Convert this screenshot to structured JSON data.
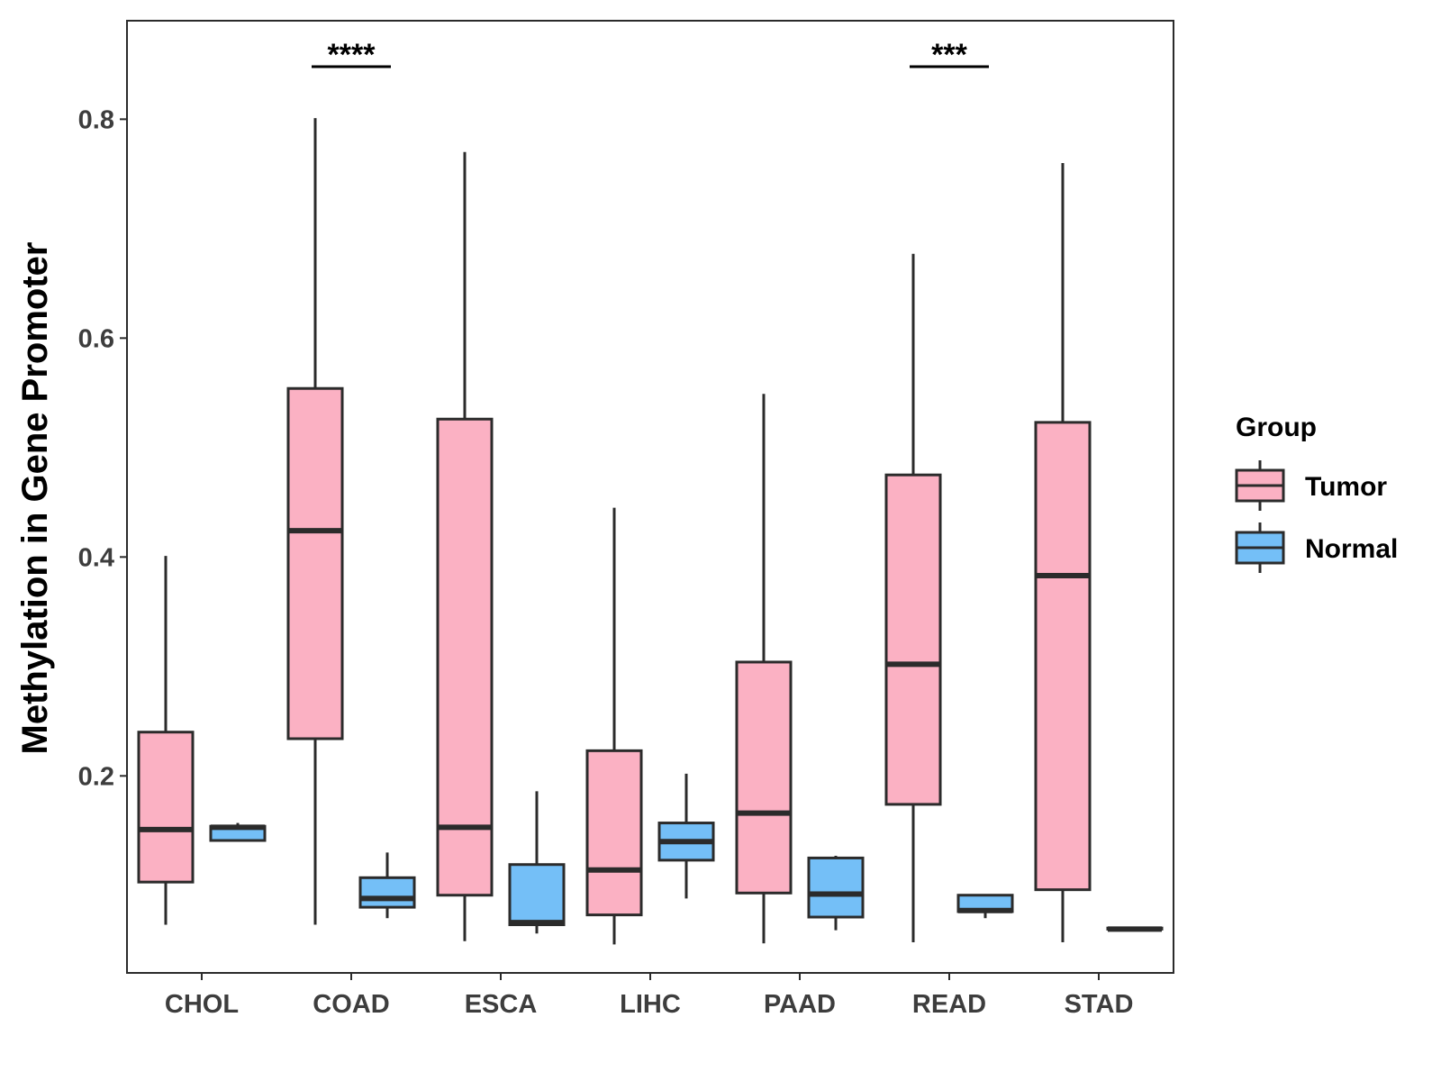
{
  "chart_data": {
    "type": "boxplot",
    "title": "",
    "xlabel": "",
    "ylabel": "Methylation in Gene Promoter",
    "ylim": [
      0.02,
      0.89
    ],
    "yticks": [
      0.2,
      0.4,
      0.6,
      0.8
    ],
    "ytick_labels": [
      "0.2",
      "0.4",
      "0.6",
      "0.8"
    ],
    "categories": [
      "CHOL",
      "COAD",
      "ESCA",
      "LIHC",
      "PAAD",
      "READ",
      "STAD"
    ],
    "legend": {
      "title": "Group",
      "position": "right",
      "entries": [
        {
          "name": "Tumor",
          "color": "#fbb1c3"
        },
        {
          "name": "Normal",
          "color": "#74bff7"
        }
      ]
    },
    "series": [
      {
        "name": "Tumor",
        "color": "#fbb1c3",
        "boxes": [
          {
            "min": 0.064,
            "q1": 0.103,
            "median": 0.151,
            "q3": 0.24,
            "max": 0.401
          },
          {
            "min": 0.064,
            "q1": 0.234,
            "median": 0.424,
            "q3": 0.554,
            "max": 0.801
          },
          {
            "min": 0.049,
            "q1": 0.091,
            "median": 0.153,
            "q3": 0.526,
            "max": 0.77
          },
          {
            "min": 0.046,
            "q1": 0.073,
            "median": 0.114,
            "q3": 0.223,
            "max": 0.445
          },
          {
            "min": 0.047,
            "q1": 0.093,
            "median": 0.166,
            "q3": 0.304,
            "max": 0.549
          },
          {
            "min": 0.048,
            "q1": 0.174,
            "median": 0.302,
            "q3": 0.475,
            "max": 0.677
          },
          {
            "min": 0.048,
            "q1": 0.096,
            "median": 0.383,
            "q3": 0.523,
            "max": 0.76
          }
        ]
      },
      {
        "name": "Normal",
        "color": "#74bff7",
        "boxes": [
          {
            "min": 0.141,
            "q1": 0.141,
            "median": 0.153,
            "q3": 0.154,
            "max": 0.157
          },
          {
            "min": 0.07,
            "q1": 0.08,
            "median": 0.088,
            "q3": 0.107,
            "max": 0.13
          },
          {
            "min": 0.056,
            "q1": 0.064,
            "median": 0.066,
            "q3": 0.119,
            "max": 0.186
          },
          {
            "min": 0.088,
            "q1": 0.123,
            "median": 0.14,
            "q3": 0.157,
            "max": 0.202
          },
          {
            "min": 0.059,
            "q1": 0.071,
            "median": 0.092,
            "q3": 0.125,
            "max": 0.127
          },
          {
            "min": 0.07,
            "q1": 0.076,
            "median": 0.077,
            "q3": 0.091,
            "max": 0.091
          },
          {
            "min": 0.06,
            "q1": 0.06,
            "median": 0.06,
            "q3": 0.061,
            "max": 0.061
          }
        ]
      }
    ],
    "significance": [
      {
        "category": "COAD",
        "label": "****"
      },
      {
        "category": "READ",
        "label": "***"
      }
    ]
  }
}
